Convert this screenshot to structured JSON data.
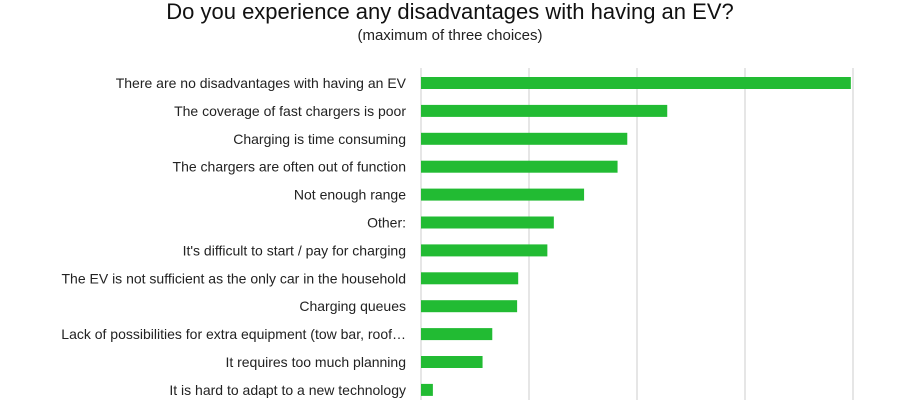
{
  "chart_data": {
    "type": "bar",
    "orientation": "horizontal",
    "title": "Do you experience any disadvantages with having an EV?",
    "subtitle": "(maximum of three choices)",
    "categories": [
      "There are no disadvantages with having an EV",
      "The coverage of fast chargers is poor",
      "Charging is time consuming",
      "The chargers are often out of function",
      "Not enough range",
      "Other:",
      "It's difficult to start / pay for charging",
      "The EV is not sufficient as the only car in the household",
      "Charging queues",
      "Lack of possibilities for extra equipment (tow bar, roof…",
      "It requires too much planning",
      "It is hard to adapt to a new technology"
    ],
    "values": [
      398,
      228,
      191,
      182,
      151,
      123,
      117,
      90,
      89,
      66,
      57,
      11
    ],
    "xlim": [
      0,
      400
    ],
    "grid": true,
    "bar_color": "#22bb33",
    "grid_color": "#cccccc"
  }
}
